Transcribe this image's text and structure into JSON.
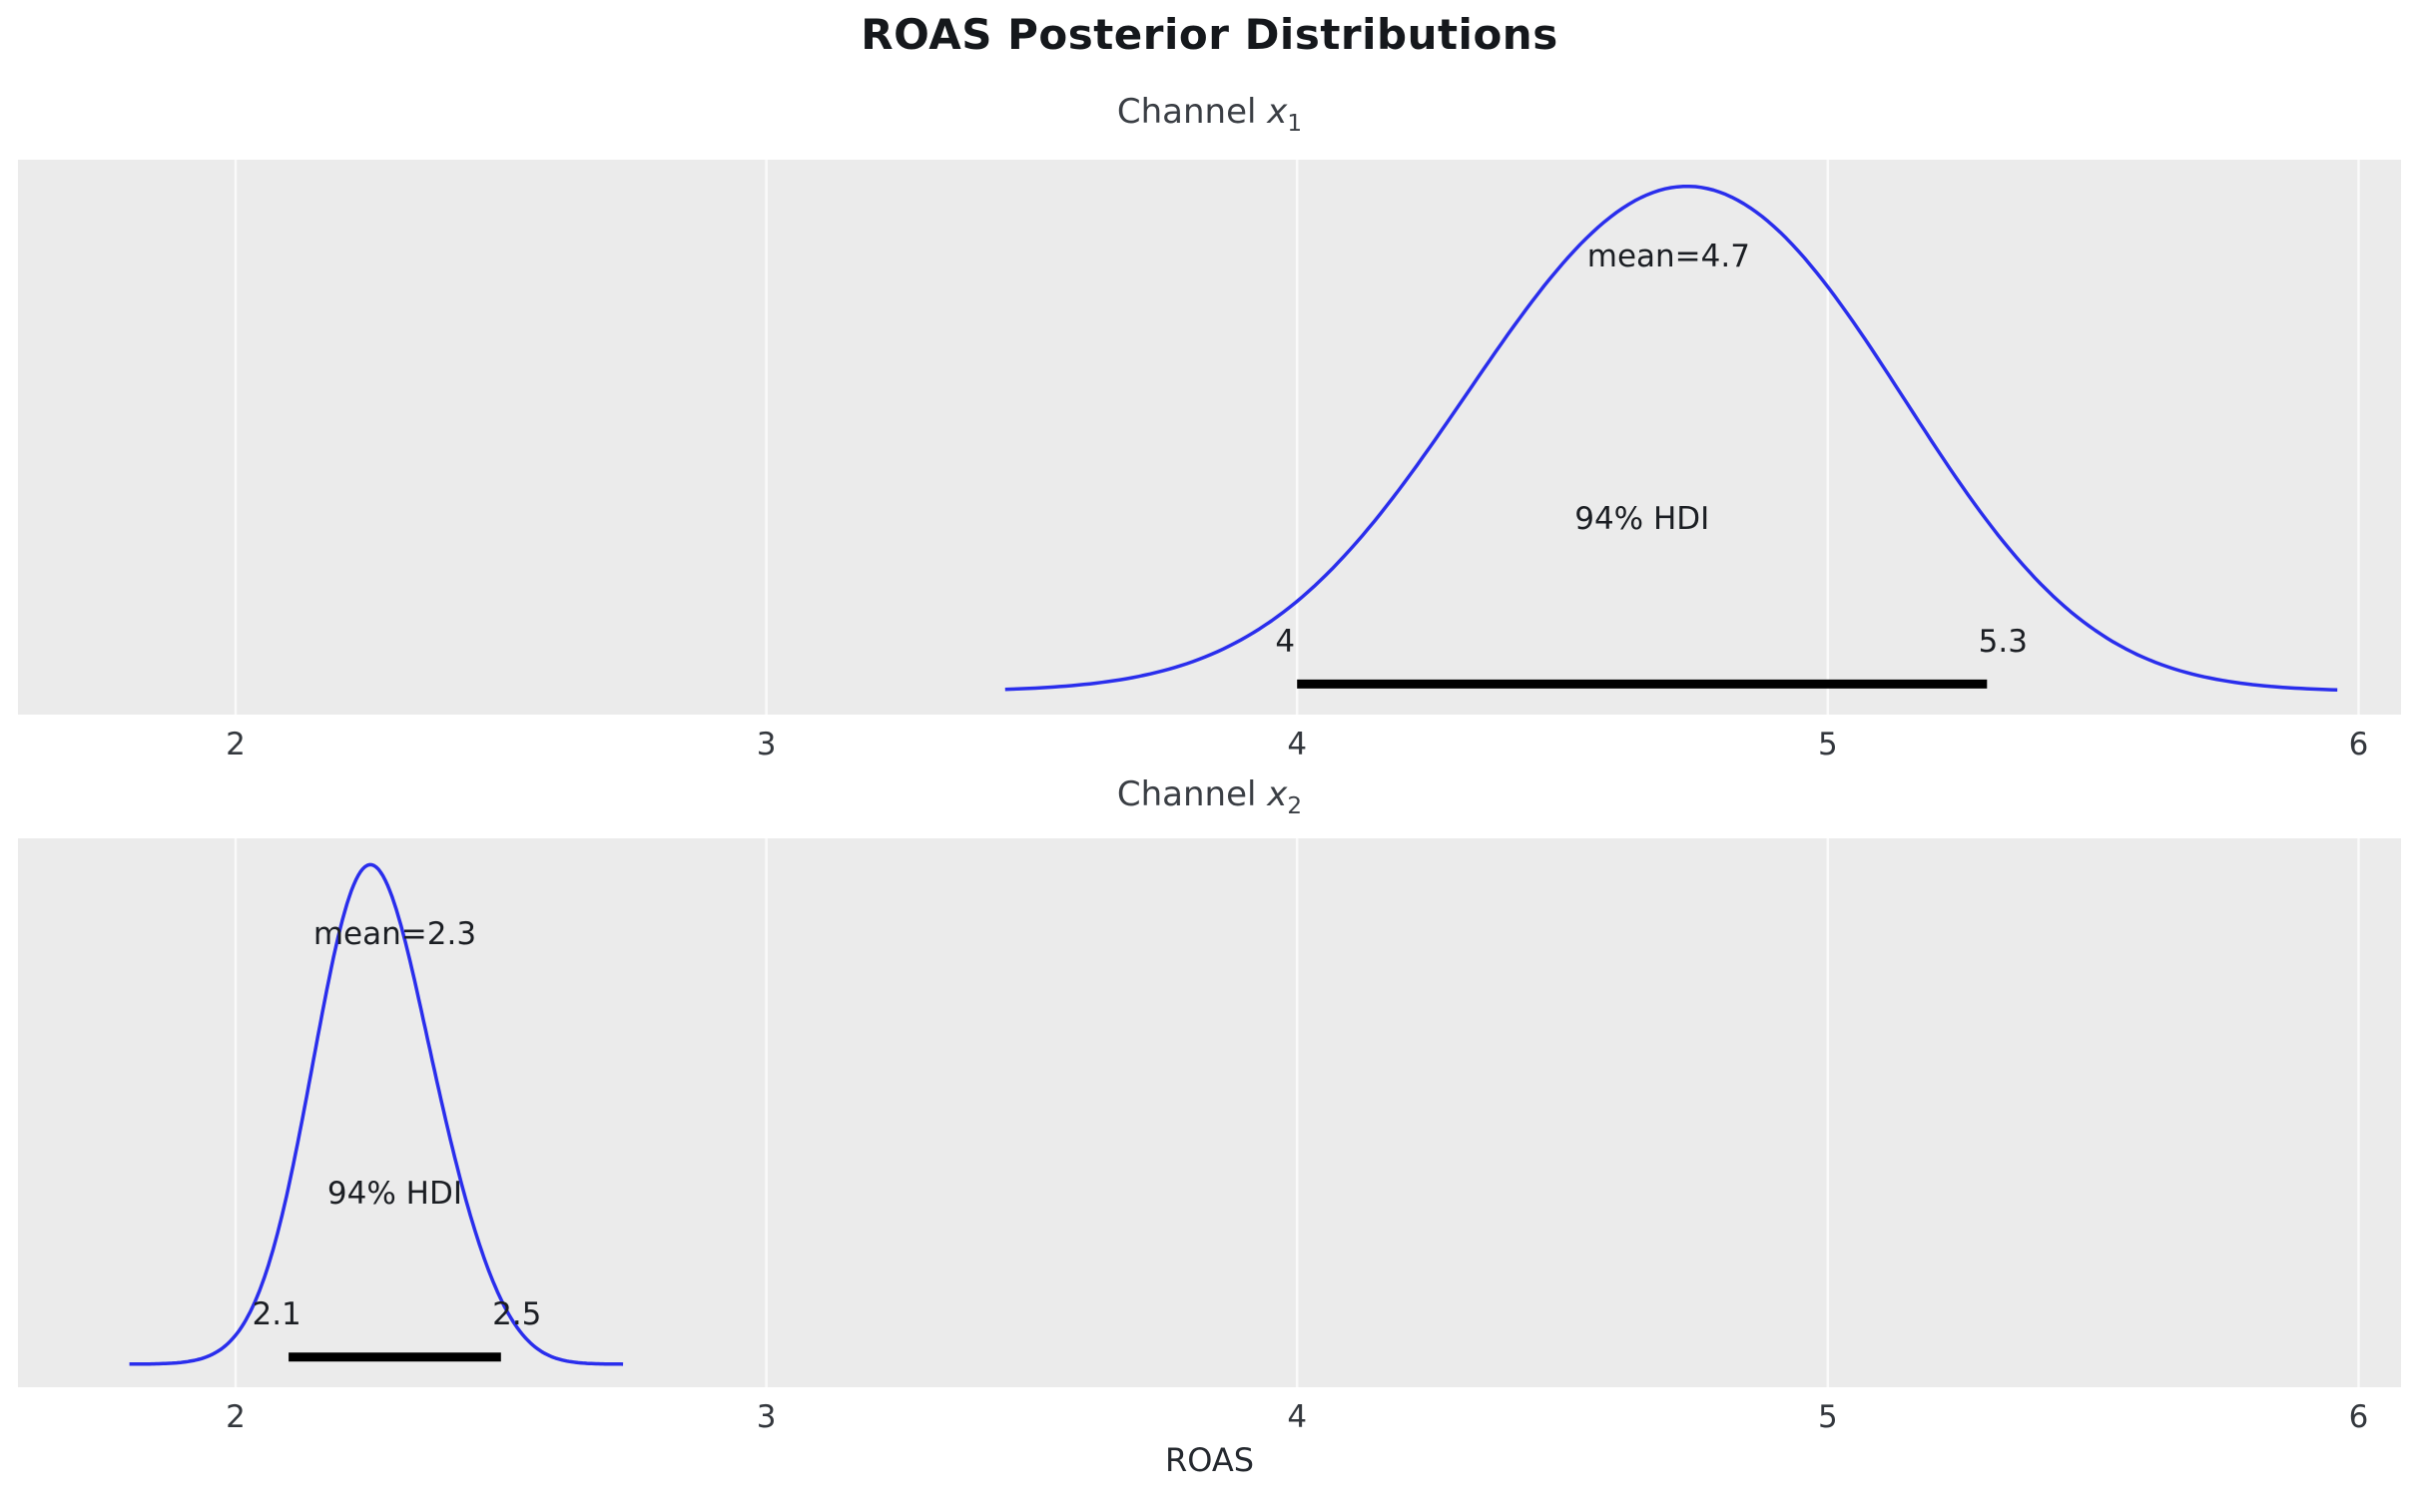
{
  "figure": {
    "title": "ROAS Posterior Distributions",
    "xlabel": "ROAS"
  },
  "chart_data": [
    {
      "type": "area",
      "plot_kind": "posterior_kde",
      "title": "Channel x1",
      "title_prefix": "Channel ",
      "title_var": "x",
      "title_sub": "1",
      "mean": 4.7,
      "mean_label": "mean=4.7",
      "hdi_prob": "94%",
      "hdi_label": "94% HDI",
      "hdi": [
        4.0,
        5.3
      ],
      "hdi_low_label": "4",
      "hdi_high_label": "5.3",
      "xlim": [
        1.59,
        6.08
      ],
      "xticks": [
        2,
        3,
        4,
        5,
        6
      ],
      "curve_range": [
        3.45,
        5.96
      ],
      "curve_components": [
        {
          "c": 4.63,
          "sd": 0.36,
          "w": 0.85
        },
        {
          "c": 5.0,
          "sd": 0.3,
          "w": 0.33
        }
      ],
      "line_color": "#2a2eec",
      "hdi_bar_color": "#000000",
      "background": "#ebebeb",
      "grid_color": "#fafafa"
    },
    {
      "type": "area",
      "plot_kind": "posterior_kde",
      "title": "Channel x2",
      "title_prefix": "Channel ",
      "title_var": "x",
      "title_sub": "2",
      "mean": 2.3,
      "mean_label": "mean=2.3",
      "hdi_prob": "94%",
      "hdi_label": "94% HDI",
      "hdi": [
        2.1,
        2.5
      ],
      "hdi_low_label": "2.1",
      "hdi_high_label": "2.5",
      "xlim": [
        1.59,
        6.08
      ],
      "xticks": [
        2,
        3,
        4,
        5,
        6
      ],
      "curve_range": [
        1.8,
        2.73
      ],
      "curve_components": [
        {
          "c": 2.25,
          "sd": 0.105,
          "w": 1.0
        },
        {
          "c": 2.42,
          "sd": 0.08,
          "w": 0.12
        }
      ],
      "line_color": "#2a2eec",
      "hdi_bar_color": "#000000",
      "background": "#ebebeb",
      "grid_color": "#fafafa"
    }
  ]
}
